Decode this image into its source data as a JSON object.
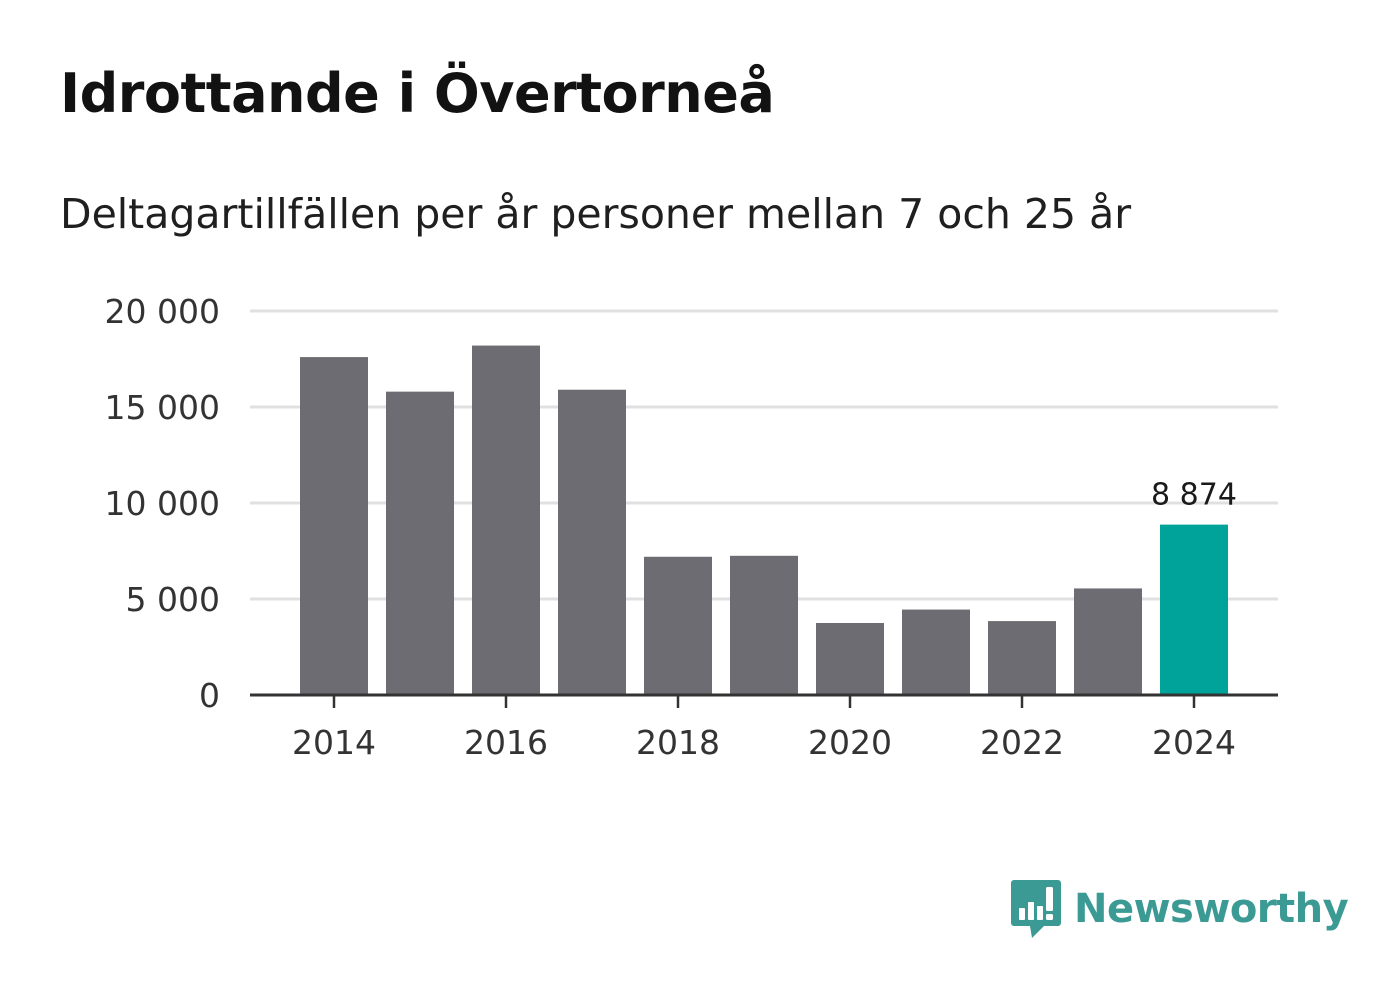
{
  "brand": {
    "name": "Newsworthy",
    "accent_color": "#3c9a94"
  },
  "chart_data": {
    "type": "bar",
    "title": "Idrottande i Övertorneå",
    "subtitle": "Deltagartillfällen per år personer mellan 7 och 25 år",
    "xlabel": "",
    "ylabel": "",
    "categories": [
      "2014",
      "2015",
      "2016",
      "2017",
      "2018",
      "2019",
      "2020",
      "2021",
      "2022",
      "2023",
      "2024"
    ],
    "values": [
      17600,
      15800,
      18200,
      15900,
      7200,
      7250,
      3750,
      4450,
      3850,
      5550,
      8874
    ],
    "x_tick_labels": [
      "2014",
      "2016",
      "2018",
      "2020",
      "2022",
      "2024"
    ],
    "y_ticks": [
      0,
      5000,
      10000,
      15000,
      20000
    ],
    "y_tick_labels": [
      "0",
      "5 000",
      "10 000",
      "15 000",
      "20 000"
    ],
    "ylim": [
      0,
      20000
    ],
    "grid": true,
    "highlight_index": 10,
    "highlight_label": "8 874",
    "bar_color": "#6d6c72",
    "highlight_color": "#00a39a",
    "grid_color": "#e0e0e0",
    "axis_color": "#333333"
  }
}
